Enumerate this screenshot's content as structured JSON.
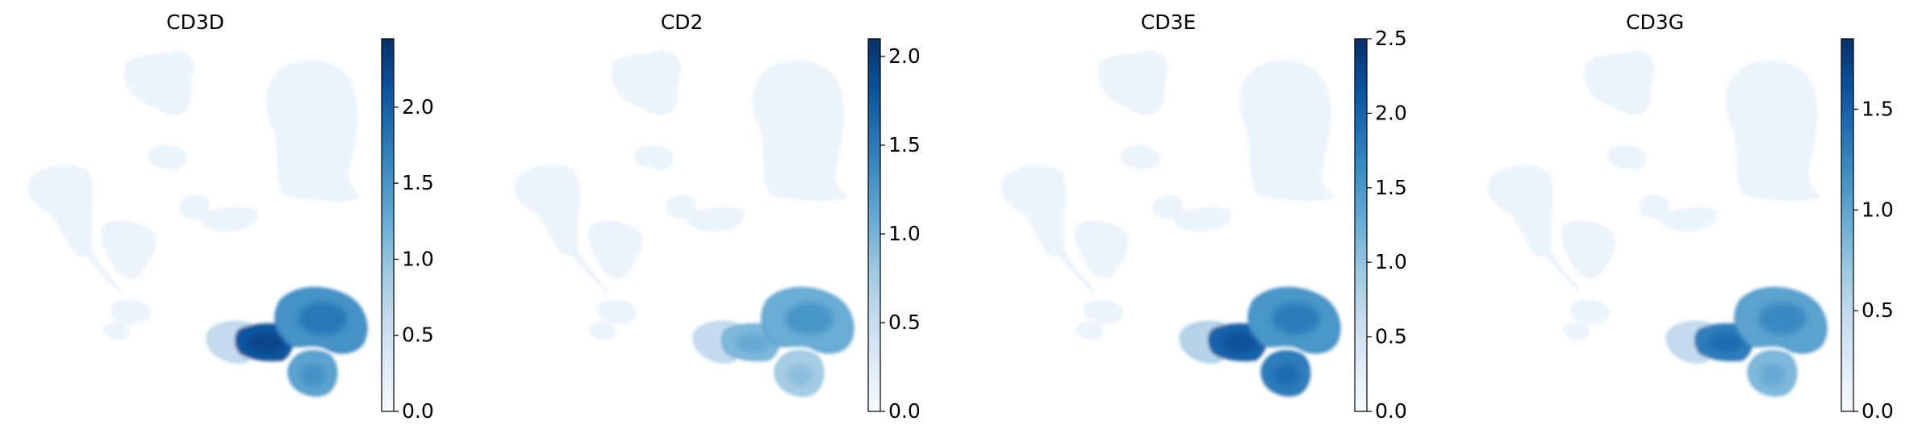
{
  "figure": {
    "colormap": "Blues",
    "panels_count": 4
  },
  "chart_data": [
    {
      "type": "scatter",
      "title": "CD3D",
      "xlabel": "",
      "ylabel": "",
      "color_range": [
        0,
        2.45
      ],
      "colorbar_ticks": [
        "0.0",
        "0.5",
        "1.0",
        "1.5",
        "2.0"
      ],
      "colorbar_tick_values": [
        0.0,
        0.5,
        1.0,
        1.5,
        2.0
      ],
      "grid": false,
      "clusters": [
        {
          "name": "bottom-right-upper-lobe",
          "level": 0.62
        },
        {
          "name": "bottom-right-left-arm",
          "level": 0.85
        },
        {
          "name": "bottom-right-lower-lobe",
          "level": 0.55
        },
        {
          "name": "bottom-right-tail",
          "level": 0.25
        }
      ]
    },
    {
      "type": "scatter",
      "title": "CD2",
      "xlabel": "",
      "ylabel": "",
      "color_range": [
        0,
        2.1
      ],
      "colorbar_ticks": [
        "0.0",
        "0.5",
        "1.0",
        "1.5",
        "2.0"
      ],
      "colorbar_tick_values": [
        0.0,
        0.5,
        1.0,
        1.5,
        2.0
      ],
      "grid": false,
      "clusters": [
        {
          "name": "bottom-right-upper-lobe",
          "level": 0.5
        },
        {
          "name": "bottom-right-left-arm",
          "level": 0.45
        },
        {
          "name": "bottom-right-lower-lobe",
          "level": 0.35
        },
        {
          "name": "bottom-right-tail",
          "level": 0.25
        }
      ]
    },
    {
      "type": "scatter",
      "title": "CD3E",
      "xlabel": "",
      "ylabel": "",
      "color_range": [
        0,
        2.5
      ],
      "colorbar_ticks": [
        "0.0",
        "0.5",
        "1.0",
        "1.5",
        "2.0",
        "2.5"
      ],
      "colorbar_tick_values": [
        0.0,
        0.5,
        1.0,
        1.5,
        2.0,
        2.5
      ],
      "grid": false,
      "clusters": [
        {
          "name": "bottom-right-upper-lobe",
          "level": 0.6
        },
        {
          "name": "bottom-right-left-arm",
          "level": 0.8
        },
        {
          "name": "bottom-right-lower-lobe",
          "level": 0.7
        },
        {
          "name": "bottom-right-tail",
          "level": 0.3
        }
      ]
    },
    {
      "type": "scatter",
      "title": "CD3G",
      "xlabel": "",
      "ylabel": "",
      "color_range": [
        0,
        1.85
      ],
      "colorbar_ticks": [
        "0.0",
        "0.5",
        "1.0",
        "1.5"
      ],
      "colorbar_tick_values": [
        0.0,
        0.5,
        1.0,
        1.5
      ],
      "grid": false,
      "clusters": [
        {
          "name": "bottom-right-upper-lobe",
          "level": 0.55
        },
        {
          "name": "bottom-right-left-arm",
          "level": 0.7
        },
        {
          "name": "bottom-right-lower-lobe",
          "level": 0.45
        },
        {
          "name": "bottom-right-tail",
          "level": 0.25
        }
      ]
    }
  ]
}
